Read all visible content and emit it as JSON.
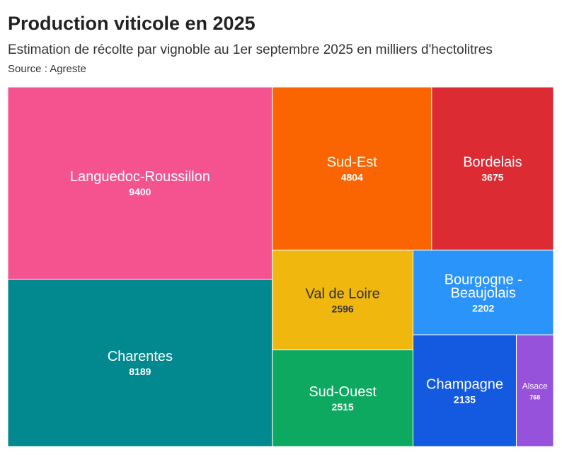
{
  "chart_data": {
    "type": "treemap",
    "title": "Production viticole en 2025",
    "subtitle": "Estimation de récolte par vignoble au 1er septembre 2025 en milliers d'hectolitres",
    "source": "Source : Agreste",
    "items": [
      {
        "name": "Languedoc-Roussillon",
        "lines": [
          "Languedoc-Roussillon"
        ],
        "value": 9400,
        "color": "#f5538f",
        "text_color": "#ffffff"
      },
      {
        "name": "Charentes",
        "lines": [
          "Charentes"
        ],
        "value": 8189,
        "color": "#028990",
        "text_color": "#ffffff"
      },
      {
        "name": "Sud-Est",
        "lines": [
          "Sud-Est"
        ],
        "value": 4804,
        "color": "#fb6501",
        "text_color": "#ffffff"
      },
      {
        "name": "Bordelais",
        "lines": [
          "Bordelais"
        ],
        "value": 3675,
        "color": "#dd2b34",
        "text_color": "#ffffff"
      },
      {
        "name": "Val de Loire",
        "lines": [
          "Val de Loire"
        ],
        "value": 2596,
        "color": "#f0b70e",
        "text_color": "#333333"
      },
      {
        "name": "Bourgogne - Beaujolais",
        "lines": [
          "Bourgogne -",
          "Beaujolais"
        ],
        "value": 2202,
        "color": "#2b94fb",
        "text_color": "#ffffff"
      },
      {
        "name": "Sud-Ouest",
        "lines": [
          "Sud-Ouest"
        ],
        "value": 2515,
        "color": "#0ea961",
        "text_color": "#ffffff"
      },
      {
        "name": "Champagne",
        "lines": [
          "Champagne"
        ],
        "value": 2135,
        "color": "#145ae0",
        "text_color": "#ffffff"
      },
      {
        "name": "Alsace",
        "lines": [
          "Alsace"
        ],
        "value": 768,
        "color": "#9752db",
        "text_color": "#ffffff"
      }
    ]
  }
}
